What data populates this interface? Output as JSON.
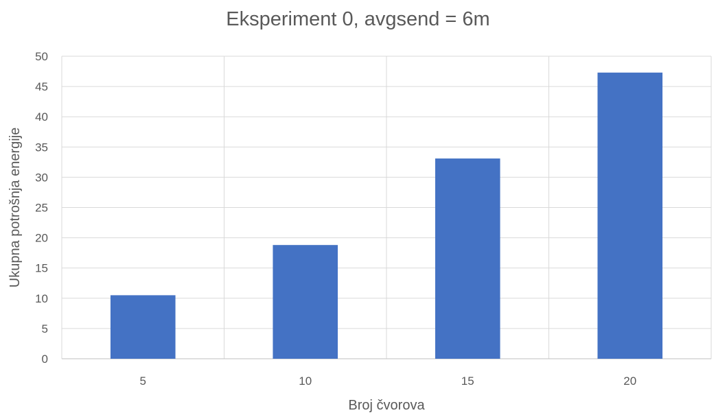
{
  "chart_data": {
    "type": "bar",
    "title": "Eksperiment 0, avgsend = 6m",
    "xlabel": "Broj čvorova",
    "ylabel": "Ukupna potrošnja energije",
    "categories": [
      "5",
      "10",
      "15",
      "20"
    ],
    "values": [
      10.5,
      18.8,
      33.1,
      47.3
    ],
    "ylim": [
      0,
      50
    ],
    "yticks": [
      0,
      5,
      10,
      15,
      20,
      25,
      30,
      35,
      40,
      45,
      50
    ],
    "grid": true,
    "legend": "none",
    "bar_color": "#4472C4"
  }
}
